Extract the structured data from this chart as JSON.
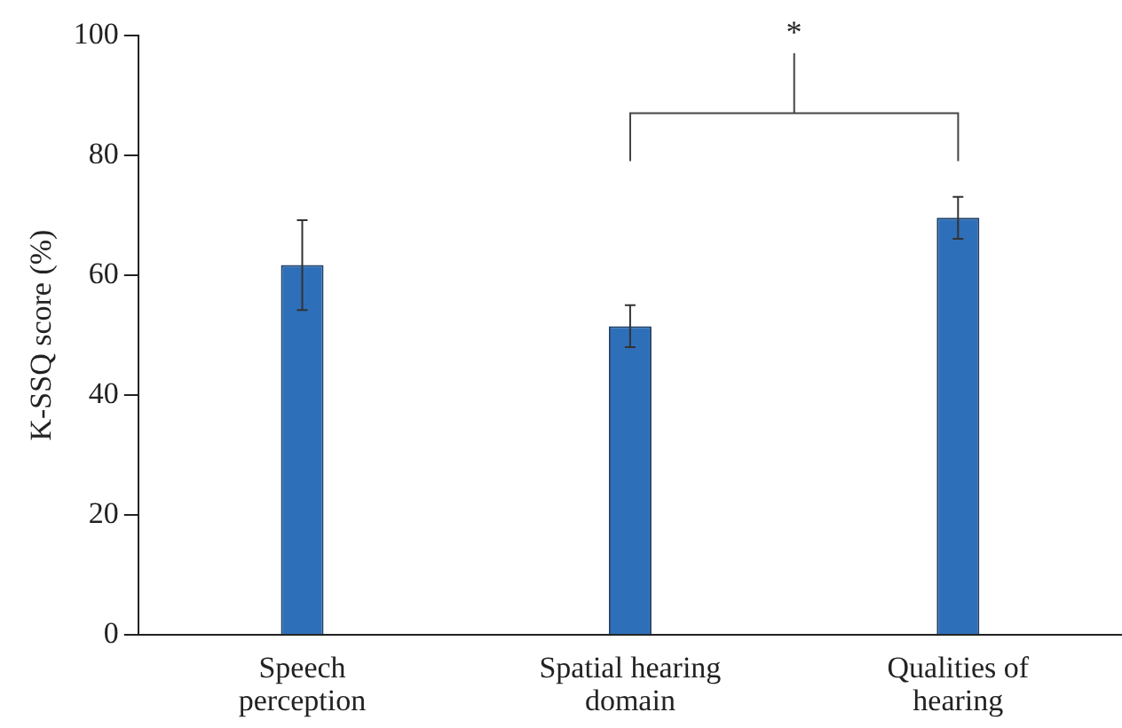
{
  "chart_data": {
    "type": "bar",
    "categories": [
      "Speech perception",
      "Spatial hearing domain",
      "Qualities of hearing"
    ],
    "values": [
      61.7,
      51.5,
      69.6
    ],
    "errors": [
      7.5,
      3.5,
      3.5
    ],
    "color": "#2e6fba",
    "ylabel": "K-SSQ score (%)",
    "ylim": [
      0,
      100
    ],
    "yticks": [
      0,
      20,
      40,
      60,
      80,
      100
    ],
    "grid": false,
    "legend": false,
    "annotations": [
      "*"
    ]
  }
}
